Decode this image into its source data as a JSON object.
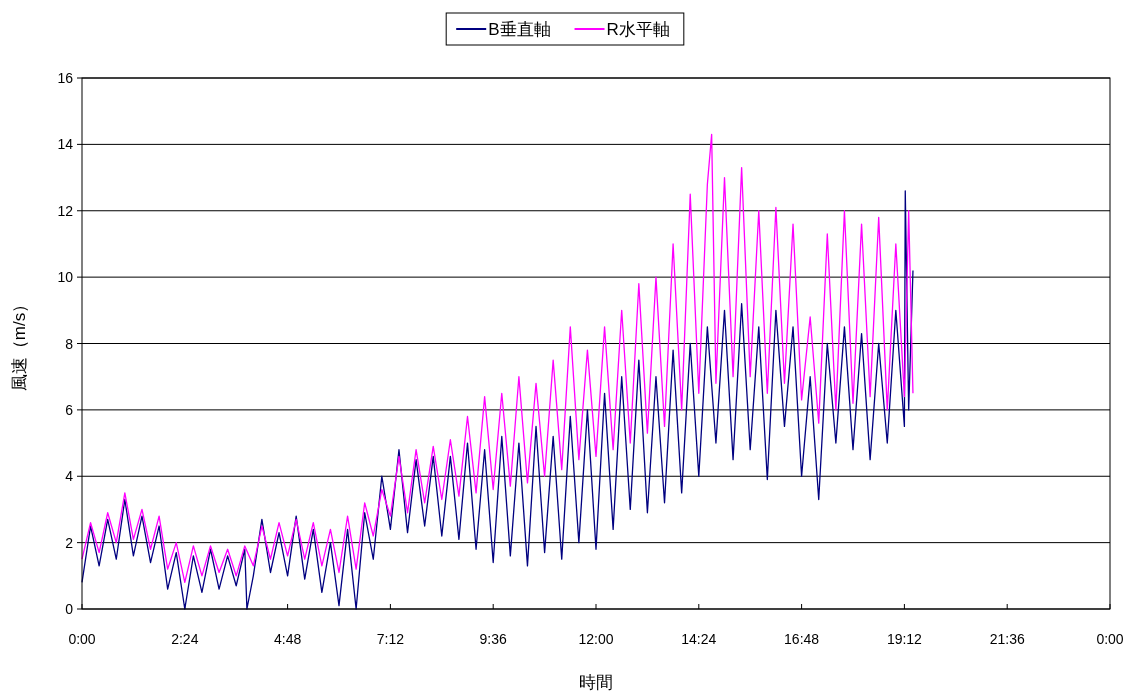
{
  "chart_data": {
    "type": "line",
    "xlabel": "時間",
    "ylabel": "風速（m/s）",
    "grid": "y",
    "legend": "top",
    "marker": "none",
    "line_style": "solid",
    "xlim": [
      0,
      24
    ],
    "xticks": [
      {
        "value": 0,
        "label": "0:00"
      },
      {
        "value": 2.4,
        "label": "2:24"
      },
      {
        "value": 4.8,
        "label": "4:48"
      },
      {
        "value": 7.2,
        "label": "7:12"
      },
      {
        "value": 9.6,
        "label": "9:36"
      },
      {
        "value": 12,
        "label": "12:00"
      },
      {
        "value": 14.4,
        "label": "14:24"
      },
      {
        "value": 16.8,
        "label": "16:48"
      },
      {
        "value": 19.2,
        "label": "19:12"
      },
      {
        "value": 21.6,
        "label": "21:36"
      },
      {
        "value": 24,
        "label": "0:00"
      }
    ],
    "ylim": [
      0,
      16
    ],
    "yticks": [
      0,
      2,
      4,
      6,
      8,
      10,
      12,
      14,
      16
    ],
    "series": [
      {
        "name": "B垂直軸",
        "color": "#000080",
        "x": [
          0,
          0.2,
          0.4,
          0.6,
          0.8,
          1,
          1.2,
          1.4,
          1.6,
          1.8,
          2,
          2.2,
          2.4,
          2.6,
          2.8,
          3,
          3.2,
          3.4,
          3.6,
          3.8,
          3.85,
          4,
          4.2,
          4.4,
          4.6,
          4.8,
          5,
          5.2,
          5.4,
          5.6,
          5.8,
          6,
          6.2,
          6.4,
          6.6,
          6.8,
          7,
          7.2,
          7.4,
          7.6,
          7.8,
          8,
          8.2,
          8.4,
          8.6,
          8.8,
          9,
          9.2,
          9.4,
          9.6,
          9.8,
          10,
          10.2,
          10.4,
          10.6,
          10.8,
          11,
          11.2,
          11.4,
          11.6,
          11.8,
          12,
          12.2,
          12.4,
          12.6,
          12.8,
          13,
          13.2,
          13.4,
          13.6,
          13.8,
          14,
          14.2,
          14.4,
          14.6,
          14.8,
          15,
          15.2,
          15.4,
          15.6,
          15.8,
          16,
          16.2,
          16.4,
          16.6,
          16.8,
          17,
          17.2,
          17.4,
          17.6,
          17.8,
          18,
          18.2,
          18.4,
          18.6,
          18.8,
          19,
          19.2,
          19.22,
          19.3,
          19.4
        ],
        "values": [
          0.8,
          2.5,
          1.3,
          2.7,
          1.5,
          3.3,
          1.6,
          2.8,
          1.4,
          2.5,
          0.6,
          1.7,
          0,
          1.6,
          0.5,
          1.8,
          0.6,
          1.6,
          0.7,
          1.8,
          0,
          1,
          2.7,
          1.1,
          2.3,
          1,
          2.8,
          0.9,
          2.4,
          0.5,
          2,
          0.1,
          2.4,
          0,
          2.9,
          1.5,
          4,
          2.4,
          4.8,
          2.3,
          4.5,
          2.5,
          4.6,
          2.2,
          4.6,
          2.1,
          5,
          1.8,
          4.8,
          1.4,
          5.2,
          1.6,
          5,
          1.3,
          5.5,
          1.7,
          5.2,
          1.5,
          5.8,
          2,
          6,
          1.8,
          6.5,
          2.4,
          7,
          3,
          7.5,
          2.9,
          7,
          3.2,
          7.8,
          3.5,
          8,
          4,
          8.5,
          5,
          9,
          4.5,
          9.2,
          4.8,
          8.5,
          3.9,
          9,
          5.5,
          8.5,
          4,
          7,
          3.3,
          8,
          5,
          8.5,
          4.8,
          8.3,
          4.5,
          8,
          5,
          9,
          5.5,
          12.6,
          6,
          10.2
        ]
      },
      {
        "name": "R水平軸",
        "color": "#ff00ff",
        "x": [
          0,
          0.2,
          0.4,
          0.6,
          0.8,
          1,
          1.2,
          1.4,
          1.6,
          1.8,
          2,
          2.2,
          2.4,
          2.6,
          2.8,
          3,
          3.2,
          3.4,
          3.6,
          3.8,
          4,
          4.2,
          4.4,
          4.6,
          4.8,
          5,
          5.2,
          5.4,
          5.6,
          5.8,
          6,
          6.2,
          6.4,
          6.6,
          6.8,
          7,
          7.2,
          7.4,
          7.6,
          7.8,
          8,
          8.2,
          8.4,
          8.6,
          8.8,
          9,
          9.2,
          9.4,
          9.6,
          9.8,
          10,
          10.2,
          10.4,
          10.6,
          10.8,
          11,
          11.2,
          11.4,
          11.6,
          11.8,
          12,
          12.2,
          12.4,
          12.6,
          12.8,
          13,
          13.2,
          13.4,
          13.6,
          13.8,
          14,
          14.2,
          14.4,
          14.6,
          14.7,
          14.8,
          15,
          15.2,
          15.4,
          15.6,
          15.8,
          16,
          16.2,
          16.4,
          16.6,
          16.8,
          17,
          17.2,
          17.4,
          17.6,
          17.8,
          18,
          18.2,
          18.4,
          18.6,
          18.8,
          19,
          19.2,
          19.3,
          19.4
        ],
        "values": [
          1.5,
          2.6,
          1.7,
          2.9,
          2,
          3.5,
          2.1,
          3,
          1.8,
          2.8,
          1.2,
          2,
          0.8,
          1.9,
          1,
          1.9,
          1.1,
          1.8,
          1,
          1.9,
          1.3,
          2.5,
          1.5,
          2.6,
          1.6,
          2.7,
          1.5,
          2.6,
          1.3,
          2.4,
          1.1,
          2.8,
          1.2,
          3.2,
          2.2,
          3.6,
          2.8,
          4.6,
          2.9,
          4.8,
          3.2,
          4.9,
          3.3,
          5.1,
          3.4,
          5.8,
          3.5,
          6.4,
          3.6,
          6.5,
          3.7,
          7,
          3.8,
          6.8,
          4,
          7.5,
          4.2,
          8.5,
          4.5,
          7.8,
          4.6,
          8.5,
          4.8,
          9,
          5,
          9.8,
          5.3,
          10,
          5.5,
          11,
          6,
          12.5,
          6.5,
          12.8,
          14.3,
          6.8,
          13,
          7,
          13.3,
          7,
          12,
          6.5,
          12.1,
          6.8,
          11.6,
          6.3,
          8.8,
          5.6,
          11.3,
          6,
          12,
          6.2,
          11.6,
          6.4,
          11.8,
          6,
          11,
          6.4,
          12,
          6.5
        ]
      }
    ]
  }
}
